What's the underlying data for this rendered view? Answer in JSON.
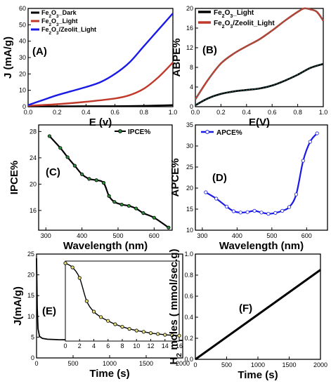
{
  "chart_data": [
    {
      "panel": "(A)",
      "type": "line",
      "xlabel": "E (v)",
      "ylabel": "J (mA/g)",
      "xlim": [
        0,
        1.0
      ],
      "ylim": [
        0,
        60
      ],
      "xticks": [
        "0.0",
        "0.2",
        "0.4",
        "0.6",
        "0.8",
        "1.0"
      ],
      "yticks": [
        "0",
        "10",
        "20",
        "30",
        "40",
        "50",
        "60"
      ],
      "legend": "top-left",
      "series": [
        {
          "name": "Fe2O3_Dark",
          "color": "#000000",
          "points": [
            [
              0,
              0.2
            ],
            [
              0.2,
              0.2
            ],
            [
              0.4,
              0.3
            ],
            [
              0.6,
              0.3
            ],
            [
              0.8,
              0.5
            ],
            [
              0.95,
              0.8
            ],
            [
              1.0,
              1.0
            ]
          ]
        },
        {
          "name": "Fe2O3_Light",
          "color": "#c0392b",
          "points": [
            [
              0,
              0.5
            ],
            [
              0.2,
              1.5
            ],
            [
              0.4,
              3
            ],
            [
              0.6,
              5
            ],
            [
              0.7,
              7
            ],
            [
              0.8,
              11
            ],
            [
              0.9,
              18
            ],
            [
              1.0,
              27
            ]
          ]
        },
        {
          "name": "Fe2O3/Zeolit_Light",
          "color": "#1a1ae6",
          "points": [
            [
              0,
              1
            ],
            [
              0.1,
              4
            ],
            [
              0.2,
              7
            ],
            [
              0.3,
              9.5
            ],
            [
              0.4,
              12
            ],
            [
              0.5,
              15
            ],
            [
              0.6,
              20
            ],
            [
              0.7,
              27
            ],
            [
              0.8,
              37
            ],
            [
              0.9,
              47
            ],
            [
              1.0,
              57
            ]
          ]
        }
      ]
    },
    {
      "panel": "(B)",
      "type": "line",
      "xlabel": "E(V)",
      "ylabel": "ABPE%",
      "xlim": [
        0,
        1.0
      ],
      "ylim": [
        0,
        20
      ],
      "xticks": [
        "0.0",
        "0.2",
        "0.4",
        "0.6",
        "0.8",
        "1.0"
      ],
      "yticks": [
        "0",
        "4",
        "8",
        "12",
        "16",
        "20"
      ],
      "legend": "top",
      "series": [
        {
          "name": "Fe2O3_Light",
          "color": "#000000",
          "points": [
            [
              0,
              0.3
            ],
            [
              0.1,
              1.7
            ],
            [
              0.2,
              2.6
            ],
            [
              0.3,
              3.1
            ],
            [
              0.4,
              3.4
            ],
            [
              0.5,
              3.7
            ],
            [
              0.6,
              4.3
            ],
            [
              0.7,
              5.3
            ],
            [
              0.8,
              6.5
            ],
            [
              0.9,
              7.9
            ],
            [
              1.0,
              8.7
            ]
          ]
        },
        {
          "name": "Fe2O3/Zeolit_Light",
          "color": "#c0392b",
          "points": [
            [
              0,
              1.5
            ],
            [
              0.1,
              5.5
            ],
            [
              0.2,
              8.8
            ],
            [
              0.3,
              10.8
            ],
            [
              0.4,
              12.3
            ],
            [
              0.5,
              13.7
            ],
            [
              0.6,
              15.5
            ],
            [
              0.7,
              17.5
            ],
            [
              0.8,
              19.3
            ],
            [
              0.85,
              20
            ],
            [
              0.9,
              19.8
            ],
            [
              0.95,
              19.3
            ],
            [
              1.0,
              17.5
            ]
          ]
        }
      ]
    },
    {
      "panel": "(C)",
      "type": "line",
      "xlabel": "Wavelength (nm)",
      "ylabel": "IPCE%",
      "xlim": [
        280,
        650
      ],
      "ylim": [
        13,
        29
      ],
      "xticks": [
        "300",
        "400",
        "500",
        "600"
      ],
      "yticks": [
        "16",
        "20",
        "24",
        "28"
      ],
      "legend": "top-right",
      "series": [
        {
          "name": "IPCE%",
          "color": "#000000",
          "points": [
            [
              310,
              27.3
            ],
            [
              340,
              25.5
            ],
            [
              360,
              24.1
            ],
            [
              380,
              22.8
            ],
            [
              400,
              21.5
            ],
            [
              420,
              20.8
            ],
            [
              440,
              20.6
            ],
            [
              460,
              20.2
            ],
            [
              475,
              18.2
            ],
            [
              490,
              17.3
            ],
            [
              510,
              16.9
            ],
            [
              530,
              16.7
            ],
            [
              550,
              16.3
            ],
            [
              570,
              15.6
            ],
            [
              600,
              14.9
            ],
            [
              640,
              13.4
            ]
          ]
        }
      ]
    },
    {
      "panel": "(D)",
      "type": "line",
      "xlabel": "Wavelength (nm)",
      "ylabel": "APCE%",
      "xlim": [
        280,
        660
      ],
      "ylim": [
        10,
        35
      ],
      "xticks": [
        "300",
        "400",
        "500",
        "600"
      ],
      "yticks": [
        "10",
        "15",
        "20",
        "25",
        "30",
        "35"
      ],
      "legend": "top-left",
      "series": [
        {
          "name": "APCE%",
          "color": "#1a1ae6",
          "points": [
            [
              310,
              19
            ],
            [
              340,
              17.5
            ],
            [
              370,
              15.6
            ],
            [
              390,
              14.5
            ],
            [
              410,
              14.2
            ],
            [
              430,
              14.3
            ],
            [
              450,
              14.6
            ],
            [
              470,
              14.2
            ],
            [
              490,
              13.9
            ],
            [
              510,
              14.1
            ],
            [
              530,
              14.6
            ],
            [
              550,
              15.5
            ],
            [
              570,
              18.5
            ],
            [
              590,
              26.5
            ],
            [
              610,
              31
            ],
            [
              630,
              33
            ]
          ]
        }
      ]
    },
    {
      "panel": "(E)",
      "type": "line",
      "xlabel": "Time (s)",
      "ylabel": "J(mA/g)",
      "xlim": [
        0,
        2000
      ],
      "ylim": [
        0,
        25
      ],
      "xticks": [
        "0",
        "500",
        "1000",
        "1500",
        "2000"
      ],
      "yticks": [
        "0",
        "5",
        "10",
        "15",
        "20",
        "25"
      ],
      "series": [
        {
          "name": "",
          "color": "#000000",
          "points": [
            [
              0,
              24
            ],
            [
              5,
              18
            ],
            [
              10,
              12
            ],
            [
              20,
              7
            ],
            [
              40,
              5.2
            ],
            [
              80,
              4.7
            ],
            [
              150,
              4.5
            ],
            [
              300,
              4.4
            ],
            [
              600,
              4.3
            ],
            [
              1000,
              4.3
            ],
            [
              1500,
              4.2
            ],
            [
              2000,
              4.2
            ]
          ]
        }
      ],
      "inset": {
        "xlim": [
          0,
          16
        ],
        "ylim": [
          6,
          25
        ],
        "xticks": [
          "0",
          "2",
          "4",
          "6",
          "8",
          "10",
          "12",
          "14",
          "16"
        ],
        "yticks": [],
        "points": [
          [
            0,
            24.5
          ],
          [
            1,
            23.5
          ],
          [
            2,
            21
          ],
          [
            3,
            15.5
          ],
          [
            4,
            13
          ],
          [
            5,
            11.7
          ],
          [
            6,
            10.8
          ],
          [
            7,
            10
          ],
          [
            8,
            9.4
          ],
          [
            9,
            8.9
          ],
          [
            10,
            8.5
          ],
          [
            11,
            8.2
          ],
          [
            12,
            7.9
          ],
          [
            13,
            7.7
          ],
          [
            14,
            7.5
          ],
          [
            15,
            7.4
          ],
          [
            16,
            7.3
          ]
        ]
      }
    },
    {
      "panel": "(F)",
      "type": "line",
      "xlabel": "Time (s)",
      "ylabel": "H2 moles ( mmol/sec.g)",
      "xlim": [
        0,
        2000
      ],
      "ylim": [
        0,
        1.0
      ],
      "xticks": [
        "0",
        "500",
        "1000",
        "1500",
        "2000"
      ],
      "yticks": [
        "0.0",
        "0.2",
        "0.4",
        "0.6",
        "0.8",
        "1.0"
      ],
      "series": [
        {
          "name": "",
          "color": "#000000",
          "points": [
            [
              0,
              0.0
            ],
            [
              2000,
              0.85
            ]
          ]
        }
      ]
    }
  ]
}
